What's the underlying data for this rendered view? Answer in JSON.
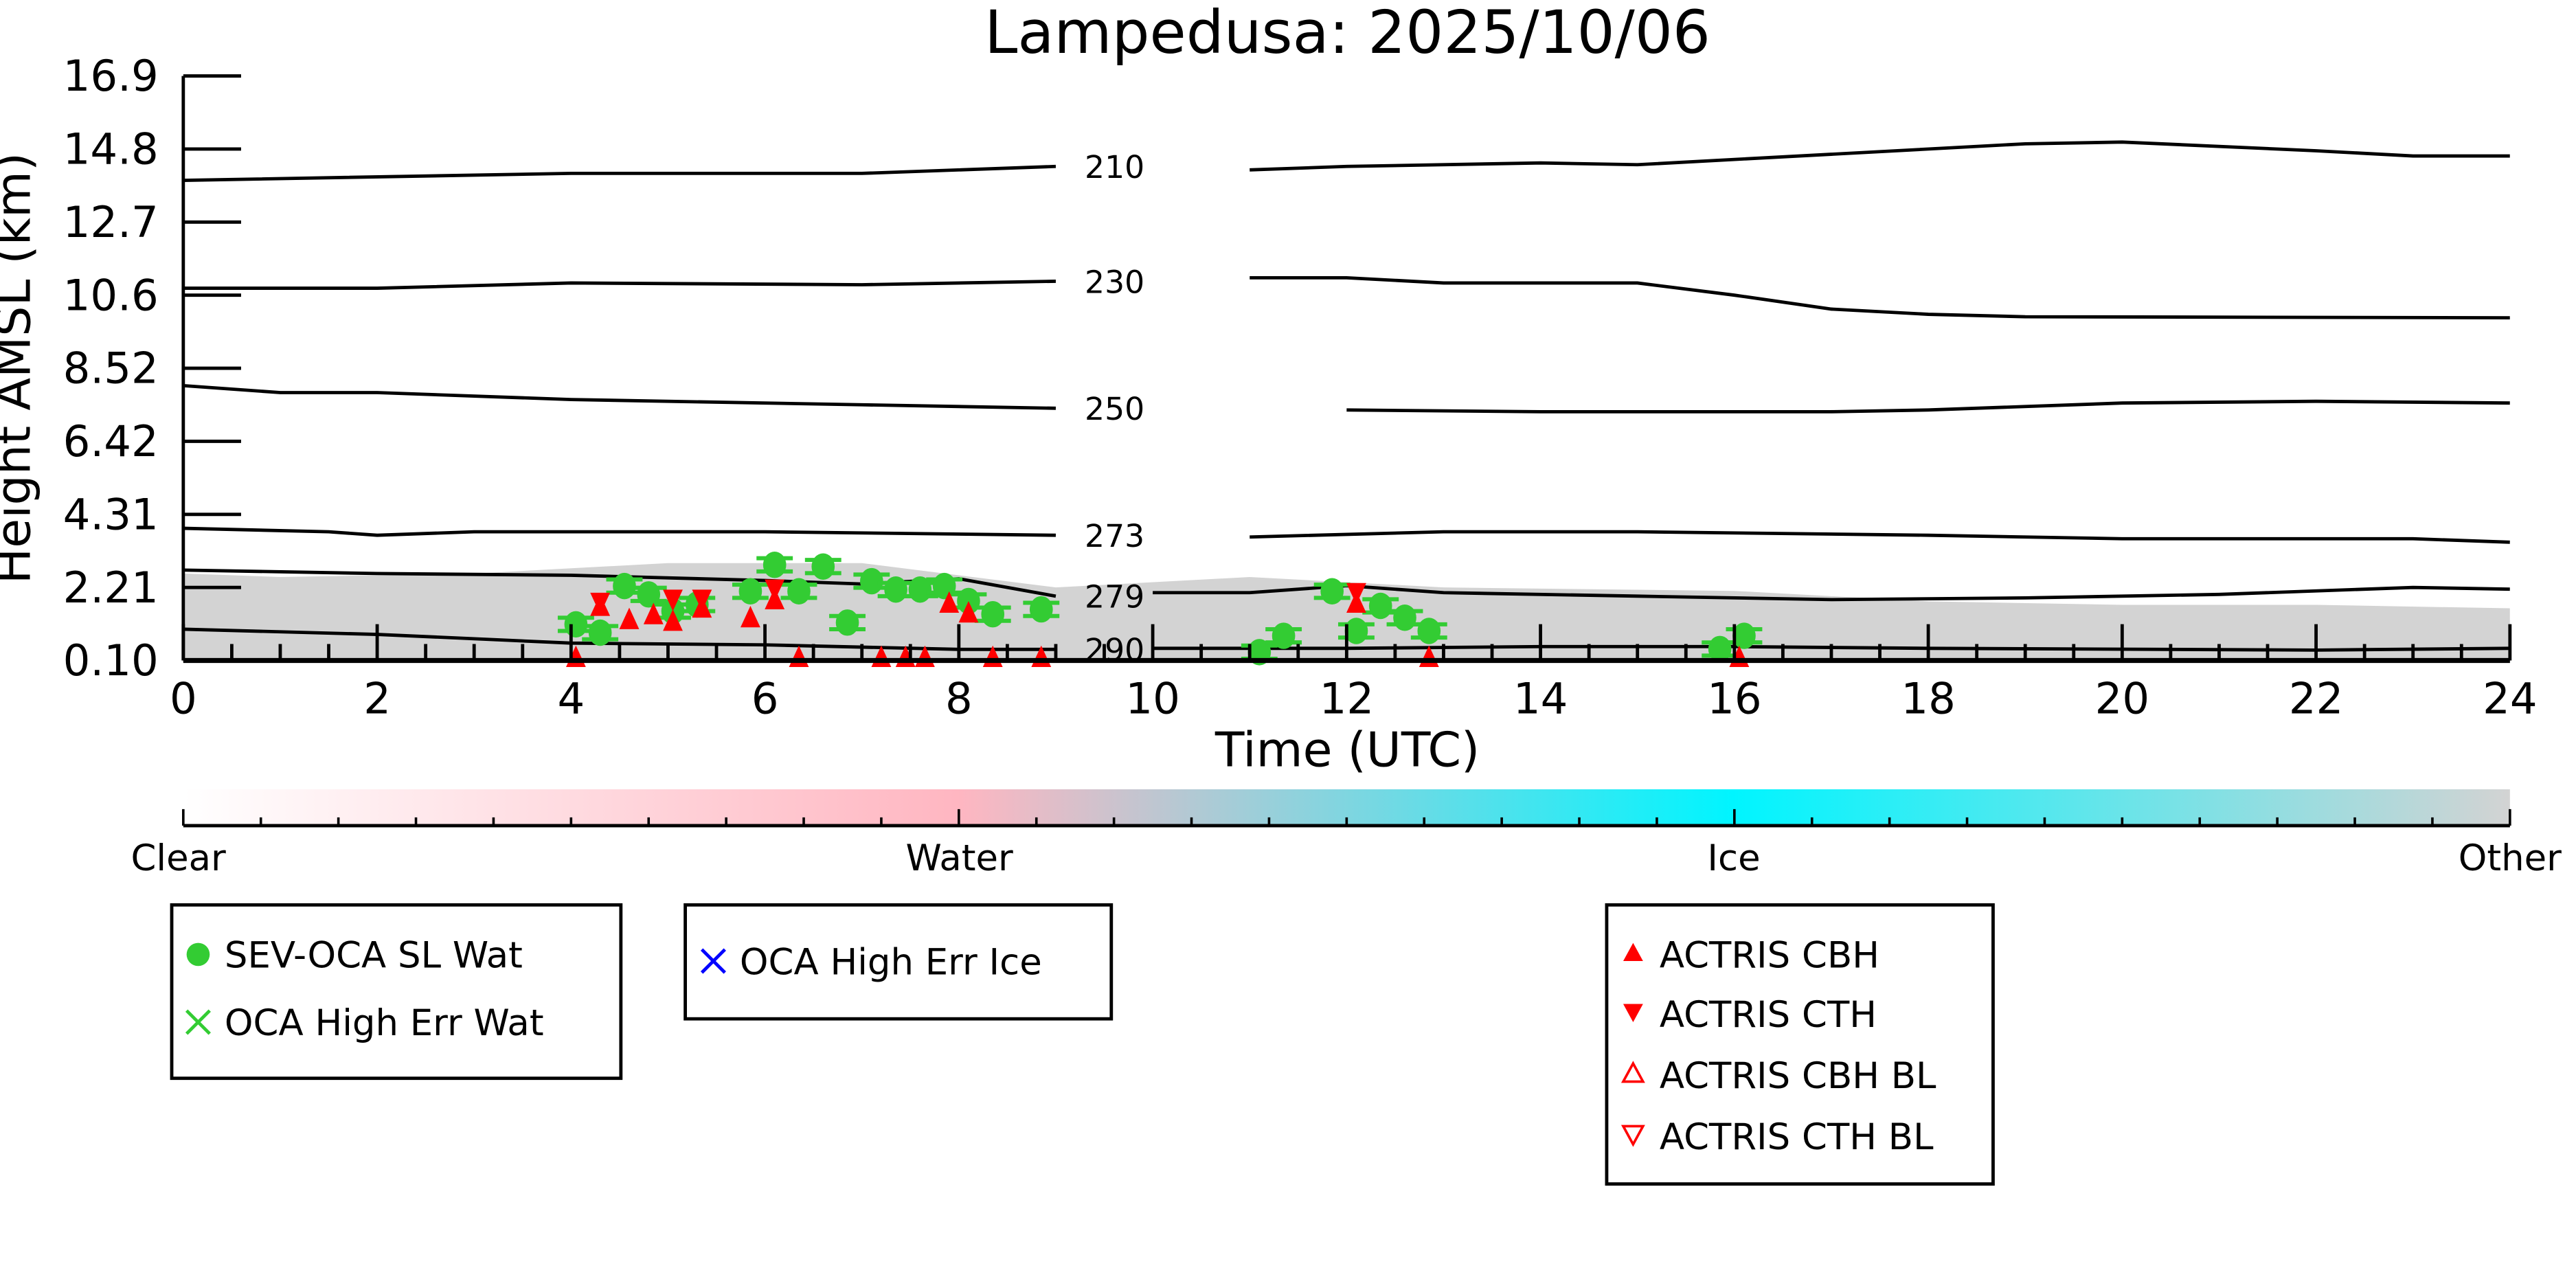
{
  "chart_data": {
    "type": "scatter",
    "title": "Lampedusa: 2025/10/06",
    "xlabel": "Time (UTC)",
    "ylabel": "Height AMSL (km)",
    "xlim": [
      0,
      24
    ],
    "ylim": [
      0.1,
      16.9
    ],
    "x_ticks": [
      "0",
      "2",
      "4",
      "6",
      "8",
      "10",
      "12",
      "14",
      "16",
      "18",
      "20",
      "22",
      "24"
    ],
    "y_ticks": [
      "0.10",
      "2.21",
      "4.31",
      "6.42",
      "8.52",
      "10.6",
      "12.7",
      "14.8",
      "16.9"
    ],
    "colorbar": {
      "labels": [
        "Clear",
        "Water",
        "Ice",
        "Other"
      ],
      "colors": [
        "#ffffff",
        "#ffb6c1",
        "#00ffff",
        "#d3d3d3"
      ]
    },
    "cloud_mask_top": [
      [
        0,
        2.6
      ],
      [
        1,
        2.5
      ],
      [
        3,
        2.6
      ],
      [
        5,
        2.9
      ],
      [
        7,
        2.9
      ],
      [
        9,
        2.2
      ],
      [
        11,
        2.5
      ],
      [
        13,
        2.2
      ],
      [
        16,
        2.1
      ],
      [
        18,
        1.8
      ],
      [
        20,
        1.7
      ],
      [
        22,
        1.7
      ],
      [
        24,
        1.6
      ]
    ],
    "contours": [
      {
        "label": "210",
        "points": [
          [
            0,
            13.9
          ],
          [
            4,
            14.1
          ],
          [
            7,
            14.1
          ],
          [
            9,
            14.3
          ],
          [
            11,
            14.2
          ],
          [
            12,
            14.3
          ],
          [
            14,
            14.4
          ],
          [
            15,
            14.35
          ],
          [
            16,
            14.5
          ],
          [
            19,
            14.95
          ],
          [
            20,
            15.0
          ],
          [
            22,
            14.75
          ],
          [
            23,
            14.6
          ],
          [
            24,
            14.6
          ]
        ]
      },
      {
        "label": "230",
        "points": [
          [
            0,
            10.8
          ],
          [
            2,
            10.8
          ],
          [
            4,
            10.95
          ],
          [
            7,
            10.9
          ],
          [
            9,
            11.0
          ],
          [
            11,
            11.1
          ],
          [
            12,
            11.1
          ],
          [
            13,
            10.95
          ],
          [
            15,
            10.95
          ],
          [
            16,
            10.6
          ],
          [
            17,
            10.2
          ],
          [
            18,
            10.05
          ],
          [
            19,
            9.98
          ],
          [
            24,
            9.95
          ]
        ]
      },
      {
        "label": "250",
        "points": [
          [
            0,
            8.0
          ],
          [
            1,
            7.8
          ],
          [
            2,
            7.8
          ],
          [
            4,
            7.6
          ],
          [
            7,
            7.45
          ],
          [
            9,
            7.35
          ],
          [
            12,
            7.3
          ],
          [
            14,
            7.25
          ],
          [
            17,
            7.25
          ],
          [
            18,
            7.3
          ],
          [
            20,
            7.5
          ],
          [
            22,
            7.55
          ],
          [
            24,
            7.5
          ]
        ]
      },
      {
        "label": "273",
        "points": [
          [
            0,
            3.9
          ],
          [
            1.5,
            3.8
          ],
          [
            2,
            3.7
          ],
          [
            3,
            3.8
          ],
          [
            6,
            3.8
          ],
          [
            9,
            3.7
          ],
          [
            11,
            3.65
          ],
          [
            13,
            3.8
          ],
          [
            15,
            3.8
          ],
          [
            18,
            3.7
          ],
          [
            20,
            3.6
          ],
          [
            23,
            3.6
          ],
          [
            24,
            3.5
          ]
        ]
      },
      {
        "label": "279",
        "points": [
          [
            0,
            2.7
          ],
          [
            2,
            2.6
          ],
          [
            4,
            2.55
          ],
          [
            6,
            2.4
          ],
          [
            7,
            2.3
          ],
          [
            8,
            2.45
          ],
          [
            9,
            1.95
          ],
          [
            10,
            2.05
          ],
          [
            11,
            2.05
          ],
          [
            12,
            2.25
          ],
          [
            13,
            2.05
          ],
          [
            15,
            1.95
          ],
          [
            17,
            1.85
          ],
          [
            19,
            1.9
          ],
          [
            21,
            2.0
          ],
          [
            23,
            2.2
          ],
          [
            24,
            2.15
          ]
        ]
      },
      {
        "label": "290",
        "points": [
          [
            0,
            1.0
          ],
          [
            2,
            0.85
          ],
          [
            4,
            0.6
          ],
          [
            6,
            0.55
          ],
          [
            8,
            0.42
          ],
          [
            9,
            0.42
          ],
          [
            10,
            0.45
          ],
          [
            12,
            0.45
          ],
          [
            14,
            0.5
          ],
          [
            16,
            0.5
          ],
          [
            18,
            0.45
          ],
          [
            22,
            0.4
          ],
          [
            24,
            0.45
          ]
        ]
      }
    ],
    "series": [
      {
        "name": "SEV-OCA SL Wat",
        "color": "#33cc33",
        "marker": "circle",
        "points": [
          [
            4.05,
            1.14
          ],
          [
            4.3,
            0.9
          ],
          [
            4.55,
            2.24
          ],
          [
            4.8,
            2.0
          ],
          [
            5.05,
            1.52
          ],
          [
            5.3,
            1.71
          ],
          [
            5.85,
            2.09
          ],
          [
            6.1,
            2.85
          ],
          [
            6.35,
            2.09
          ],
          [
            6.6,
            2.8
          ],
          [
            6.85,
            1.19
          ],
          [
            7.1,
            2.38
          ],
          [
            7.35,
            2.14
          ],
          [
            7.6,
            2.14
          ],
          [
            7.85,
            2.24
          ],
          [
            8.1,
            1.81
          ],
          [
            8.35,
            1.43
          ],
          [
            8.85,
            1.57
          ],
          [
            11.1,
            0.34
          ],
          [
            11.35,
            0.81
          ],
          [
            11.85,
            2.09
          ],
          [
            12.1,
            0.95
          ],
          [
            12.35,
            1.67
          ],
          [
            12.6,
            1.33
          ],
          [
            12.85,
            0.95
          ],
          [
            15.85,
            0.43
          ],
          [
            16.1,
            0.81
          ]
        ]
      },
      {
        "name": "OCA High Err Wat",
        "color": "#33cc33",
        "marker": "x",
        "points": []
      },
      {
        "name": "OCA High Err Ice",
        "color": "#0000ff",
        "marker": "x",
        "points": []
      },
      {
        "name": "ACTRIS CBH",
        "color": "#ff0000",
        "marker": "triangle-up",
        "points": [
          [
            4.3,
            1.62
          ],
          [
            4.6,
            1.24
          ],
          [
            4.85,
            1.38
          ],
          [
            5.05,
            1.19
          ],
          [
            5.35,
            1.57
          ],
          [
            5.85,
            1.29
          ],
          [
            6.1,
            1.81
          ],
          [
            7.9,
            1.71
          ],
          [
            8.1,
            1.43
          ],
          [
            12.1,
            1.71
          ],
          [
            4.05,
            0.15
          ],
          [
            6.35,
            0.15
          ],
          [
            7.2,
            0.15
          ],
          [
            7.45,
            0.15
          ],
          [
            7.65,
            0.15
          ],
          [
            8.35,
            0.15
          ],
          [
            8.85,
            0.15
          ],
          [
            12.85,
            0.15
          ],
          [
            16.05,
            0.15
          ]
        ]
      },
      {
        "name": "ACTRIS CTH",
        "color": "#ff0000",
        "marker": "triangle-down",
        "points": [
          [
            4.3,
            1.81
          ],
          [
            5.05,
            1.9
          ],
          [
            5.35,
            1.9
          ],
          [
            6.1,
            2.19
          ],
          [
            12.1,
            2.09
          ]
        ]
      },
      {
        "name": "ACTRIS CBH BL",
        "color": "#ff0000",
        "marker": "triangle-up-open",
        "points": []
      },
      {
        "name": "ACTRIS CTH BL",
        "color": "#ff0000",
        "marker": "triangle-down-open",
        "points": []
      }
    ]
  }
}
